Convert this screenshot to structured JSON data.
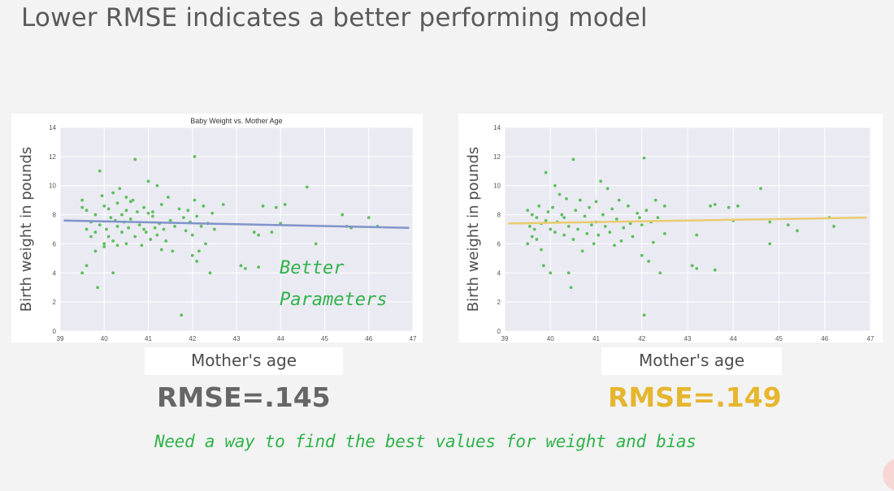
{
  "slide": {
    "title": "Lower RMSE indicates a better performing model",
    "note_better_line1": "Better",
    "note_better_line2": "Parameters",
    "note_bottom": "Need a way to find the best values for weight and bias"
  },
  "colors": {
    "scatter": "#5fbf5f",
    "plot_bg": "#eaeaf2",
    "grid": "#ffffff",
    "line_left": "#7f94c8",
    "line_right": "#e9cc6f",
    "rmse_left": "#666666",
    "rmse_right": "#e6b62e",
    "handwriting": "#2fb34a"
  },
  "chart_data": [
    {
      "type": "scatter",
      "title": "Baby Weight vs. Mother Age",
      "xlabel": "Mother's age",
      "ylabel": "Birth weight in pounds",
      "xlim": [
        39,
        47
      ],
      "ylim": [
        0,
        14
      ],
      "xticks": [
        "39",
        "40",
        "41",
        "42",
        "43",
        "44",
        "45",
        "46",
        "47"
      ],
      "yticks": [
        "0",
        "2",
        "4",
        "6",
        "8",
        "10",
        "12",
        "14"
      ],
      "grid": true,
      "rmse_label": "RMSE=.145",
      "fit_line": {
        "x": [
          39.1,
          46.9
        ],
        "y": [
          7.6,
          7.1
        ]
      },
      "points": [
        [
          39.5,
          9.0
        ],
        [
          39.5,
          8.5
        ],
        [
          39.5,
          4.0
        ],
        [
          39.6,
          8.3
        ],
        [
          39.6,
          4.5
        ],
        [
          39.6,
          7.0
        ],
        [
          39.7,
          7.5
        ],
        [
          39.7,
          6.5
        ],
        [
          39.8,
          6.8
        ],
        [
          39.8,
          5.5
        ],
        [
          39.8,
          8.0
        ],
        [
          39.85,
          3.0
        ],
        [
          39.9,
          7.3
        ],
        [
          39.9,
          11.0
        ],
        [
          39.95,
          9.3
        ],
        [
          40.0,
          6.0
        ],
        [
          40.0,
          8.6
        ],
        [
          40.0,
          5.8
        ],
        [
          40.05,
          7.0
        ],
        [
          40.1,
          8.4
        ],
        [
          40.1,
          6.5
        ],
        [
          40.15,
          7.8
        ],
        [
          40.2,
          9.5
        ],
        [
          40.2,
          4.0
        ],
        [
          40.2,
          6.2
        ],
        [
          40.25,
          7.6
        ],
        [
          40.3,
          8.8
        ],
        [
          40.3,
          7.2
        ],
        [
          40.3,
          5.9
        ],
        [
          40.35,
          9.8
        ],
        [
          40.4,
          8.0
        ],
        [
          40.4,
          6.8
        ],
        [
          40.45,
          7.5
        ],
        [
          40.5,
          9.2
        ],
        [
          40.5,
          8.3
        ],
        [
          40.5,
          6.0
        ],
        [
          40.55,
          7.1
        ],
        [
          40.6,
          8.9
        ],
        [
          40.6,
          7.7
        ],
        [
          40.65,
          9.0
        ],
        [
          40.7,
          11.8
        ],
        [
          40.7,
          6.5
        ],
        [
          40.75,
          8.2
        ],
        [
          40.8,
          7.3
        ],
        [
          40.85,
          5.9
        ],
        [
          40.9,
          8.5
        ],
        [
          40.9,
          7.0
        ],
        [
          40.95,
          6.8
        ],
        [
          41.0,
          10.3
        ],
        [
          41.0,
          8.1
        ],
        [
          41.05,
          6.3
        ],
        [
          41.1,
          7.9
        ],
        [
          41.1,
          8.2
        ],
        [
          41.15,
          7.1
        ],
        [
          41.2,
          6.6
        ],
        [
          41.2,
          10.0
        ],
        [
          41.25,
          7.4
        ],
        [
          41.3,
          8.7
        ],
        [
          41.3,
          5.6
        ],
        [
          41.35,
          7.0
        ],
        [
          41.4,
          6.2
        ],
        [
          41.45,
          9.2
        ],
        [
          41.5,
          7.6
        ],
        [
          41.55,
          5.5
        ],
        [
          41.6,
          7.2
        ],
        [
          41.7,
          8.4
        ],
        [
          41.75,
          1.1
        ],
        [
          41.8,
          7.8
        ],
        [
          41.85,
          6.9
        ],
        [
          41.9,
          8.3
        ],
        [
          41.95,
          7.5
        ],
        [
          42.0,
          5.2
        ],
        [
          42.0,
          6.6
        ],
        [
          42.05,
          12.0
        ],
        [
          42.05,
          9.0
        ],
        [
          42.1,
          4.8
        ],
        [
          42.1,
          7.9
        ],
        [
          42.15,
          5.5
        ],
        [
          42.2,
          7.2
        ],
        [
          42.25,
          8.6
        ],
        [
          42.3,
          6.0
        ],
        [
          42.35,
          7.4
        ],
        [
          42.4,
          4.0
        ],
        [
          42.45,
          8.1
        ],
        [
          42.5,
          7.0
        ],
        [
          42.7,
          8.7
        ],
        [
          43.1,
          4.5
        ],
        [
          43.2,
          4.3
        ],
        [
          43.4,
          6.8
        ],
        [
          43.5,
          6.6
        ],
        [
          43.5,
          4.4
        ],
        [
          43.6,
          8.6
        ],
        [
          43.8,
          6.8
        ],
        [
          43.9,
          8.5
        ],
        [
          44.0,
          7.4
        ],
        [
          44.1,
          8.7
        ],
        [
          44.6,
          9.9
        ],
        [
          44.8,
          6.0
        ],
        [
          45.4,
          8.0
        ],
        [
          45.5,
          7.2
        ],
        [
          45.6,
          7.1
        ],
        [
          46.0,
          7.8
        ],
        [
          46.2,
          7.2
        ]
      ]
    },
    {
      "type": "scatter",
      "xlabel": "Mother's age",
      "ylabel": "Birth weight in pounds",
      "xlim": [
        39,
        47
      ],
      "ylim": [
        0,
        14
      ],
      "xticks": [
        "39",
        "40",
        "41",
        "42",
        "43",
        "44",
        "45",
        "46",
        "47"
      ],
      "yticks": [
        "0",
        "2",
        "4",
        "6",
        "8",
        "10",
        "12",
        "14"
      ],
      "grid": true,
      "rmse_label": "RMSE=.149",
      "fit_line": {
        "x": [
          39.1,
          46.9
        ],
        "y": [
          7.4,
          7.8
        ]
      },
      "points": [
        [
          39.5,
          8.3
        ],
        [
          39.5,
          6.0
        ],
        [
          39.55,
          7.2
        ],
        [
          39.6,
          8.0
        ],
        [
          39.6,
          6.5
        ],
        [
          39.65,
          7.0
        ],
        [
          39.7,
          7.8
        ],
        [
          39.7,
          6.3
        ],
        [
          39.75,
          8.6
        ],
        [
          39.8,
          7.4
        ],
        [
          39.8,
          5.6
        ],
        [
          39.85,
          4.5
        ],
        [
          39.9,
          10.9
        ],
        [
          39.9,
          7.6
        ],
        [
          39.95,
          8.2
        ],
        [
          40.0,
          7.0
        ],
        [
          40.0,
          4.0
        ],
        [
          40.05,
          8.5
        ],
        [
          40.1,
          6.8
        ],
        [
          40.1,
          10.0
        ],
        [
          40.15,
          7.5
        ],
        [
          40.2,
          9.4
        ],
        [
          40.25,
          8.0
        ],
        [
          40.3,
          6.6
        ],
        [
          40.3,
          7.8
        ],
        [
          40.35,
          9.1
        ],
        [
          40.4,
          4.0
        ],
        [
          40.4,
          7.2
        ],
        [
          40.45,
          3.0
        ],
        [
          40.5,
          11.8
        ],
        [
          40.5,
          6.3
        ],
        [
          40.55,
          8.3
        ],
        [
          40.6,
          7.0
        ],
        [
          40.65,
          9.0
        ],
        [
          40.7,
          5.5
        ],
        [
          40.75,
          7.9
        ],
        [
          40.8,
          6.7
        ],
        [
          40.85,
          8.5
        ],
        [
          40.9,
          7.3
        ],
        [
          40.95,
          6.0
        ],
        [
          41.0,
          8.9
        ],
        [
          41.0,
          7.5
        ],
        [
          41.05,
          6.6
        ],
        [
          41.1,
          10.3
        ],
        [
          41.15,
          8.0
        ],
        [
          41.2,
          7.2
        ],
        [
          41.25,
          9.8
        ],
        [
          41.3,
          6.8
        ],
        [
          41.35,
          8.4
        ],
        [
          41.4,
          5.9
        ],
        [
          41.45,
          7.7
        ],
        [
          41.5,
          9.0
        ],
        [
          41.55,
          6.2
        ],
        [
          41.6,
          7.1
        ],
        [
          41.7,
          8.6
        ],
        [
          41.75,
          7.4
        ],
        [
          41.8,
          6.5
        ],
        [
          41.9,
          8.1
        ],
        [
          41.95,
          7.8
        ],
        [
          42.0,
          5.2
        ],
        [
          42.0,
          7.3
        ],
        [
          42.05,
          11.9
        ],
        [
          42.05,
          1.1
        ],
        [
          42.1,
          8.3
        ],
        [
          42.15,
          4.8
        ],
        [
          42.2,
          7.5
        ],
        [
          42.25,
          6.1
        ],
        [
          42.3,
          9.0
        ],
        [
          42.35,
          7.8
        ],
        [
          42.4,
          4.0
        ],
        [
          42.5,
          6.7
        ],
        [
          42.5,
          8.6
        ],
        [
          43.1,
          4.5
        ],
        [
          43.2,
          4.3
        ],
        [
          43.2,
          6.6
        ],
        [
          43.5,
          8.6
        ],
        [
          43.6,
          8.7
        ],
        [
          43.6,
          4.2
        ],
        [
          43.9,
          8.5
        ],
        [
          44.0,
          7.6
        ],
        [
          44.1,
          8.6
        ],
        [
          44.6,
          9.8
        ],
        [
          44.8,
          6.0
        ],
        [
          44.8,
          7.5
        ],
        [
          45.2,
          7.3
        ],
        [
          45.4,
          6.9
        ],
        [
          46.1,
          7.8
        ],
        [
          46.2,
          7.2
        ]
      ]
    }
  ]
}
